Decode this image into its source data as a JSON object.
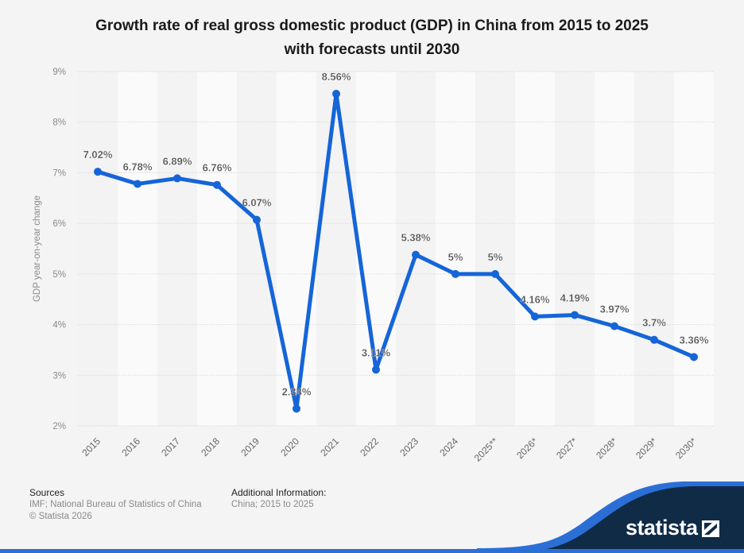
{
  "chart_data": {
    "type": "line",
    "title": [
      "Growth rate of real gross domestic product (GDP) in China from 2015 to 2025",
      "with forecasts until 2030"
    ],
    "xlabel": "",
    "ylabel": "GDP year-on-year change",
    "ylim": [
      2,
      9
    ],
    "yticks": [
      2,
      3,
      4,
      5,
      6,
      7,
      8,
      9
    ],
    "ytick_labels": [
      "2%",
      "3%",
      "4%",
      "5%",
      "6%",
      "7%",
      "8%",
      "9%"
    ],
    "grid": true,
    "categories": [
      "2015",
      "2016",
      "2017",
      "2018",
      "2019",
      "2020",
      "2021",
      "2022",
      "2023",
      "2024",
      "2025**",
      "2026*",
      "2027*",
      "2028*",
      "2029*",
      "2030*"
    ],
    "series": [
      {
        "name": "GDP year-on-year change",
        "color": "#1565d8",
        "values": [
          7.02,
          6.78,
          6.89,
          6.76,
          6.07,
          2.34,
          8.56,
          3.11,
          5.38,
          5.0,
          5.0,
          4.16,
          4.19,
          3.97,
          3.7,
          3.36
        ],
        "data_labels": [
          "7.02%",
          "6.78%",
          "6.89%",
          "6.76%",
          "6.07%",
          "2.34%",
          "8.56%",
          "3.11%",
          "5.38%",
          "5%",
          "5%",
          "4.16%",
          "4.19%",
          "3.97%",
          "3.7%",
          "3.36%"
        ]
      }
    ],
    "legend": "none"
  },
  "footer": {
    "sources_heading": "Sources",
    "sources_text": "IMF; National Bureau of Statistics of China",
    "copyright": "© Statista 2026",
    "additional_heading": "Additional Information:",
    "additional_text": "China; 2015 to 2025"
  },
  "brand": {
    "name": "statista",
    "dark_color": "#0f2b46",
    "accent_color": "#2b6fd6"
  }
}
